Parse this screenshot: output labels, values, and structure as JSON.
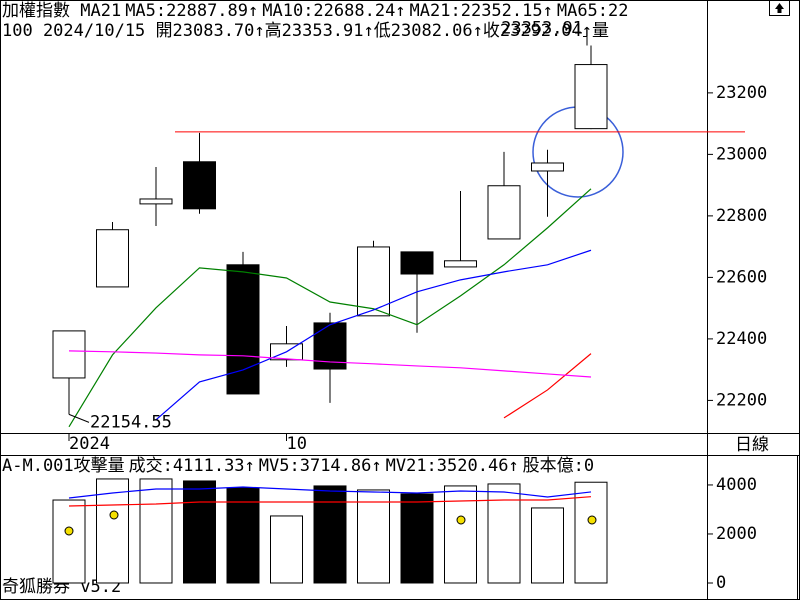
{
  "period": "日線",
  "footer": "奇狐勝券 v5.2",
  "chart_data": [
    {
      "type": "candlestick",
      "title": "加權指數 MA21",
      "info": "100 2024/10/15 開23083.70↑高23353.91↑低23082.06↑收23292.04↑量",
      "categories": [
        "2024",
        null,
        null,
        null,
        null,
        "10",
        null,
        null,
        null,
        null,
        null,
        null,
        null
      ],
      "open": [
        22273,
        22569,
        22839,
        22976,
        22641,
        22332,
        22452,
        22475,
        22683,
        22634,
        22725,
        22946,
        23083.7
      ],
      "high": [
        22426,
        22780,
        22959,
        23070,
        22683,
        22442,
        22485,
        22719,
        22683,
        22881,
        23008,
        23015,
        23353.91
      ],
      "low": [
        22154.55,
        22569,
        22767,
        22807,
        22221,
        22309,
        22192,
        22475,
        22420,
        22634,
        22725,
        22797,
        23082.06
      ],
      "close": [
        22426,
        22755,
        22855,
        22823,
        22221,
        22384,
        22302,
        22699,
        22611,
        22654,
        22898,
        22972,
        23292.04
      ],
      "up_color": "#ffffff",
      "down_color": "#000000",
      "lines": [
        {
          "name": "MA5:22887.89↑",
          "color": "#008000",
          "values": [
            22114,
            22348,
            22501,
            22631,
            22618,
            22598,
            22520,
            22498,
            22446,
            22540,
            22641,
            22761,
            22887.89
          ]
        },
        {
          "name": "MA10:22688.24↑",
          "color": "#0000ff",
          "values": [
            null,
            null,
            22137,
            22260,
            22299,
            22358,
            22446,
            22494,
            22553,
            22592,
            22618,
            22641,
            22688.24
          ]
        },
        {
          "name": "MA21:22352.15↑",
          "color": "#ff0000",
          "values": [
            null,
            null,
            null,
            null,
            null,
            null,
            null,
            null,
            null,
            null,
            22143,
            22234,
            22352.15
          ]
        },
        {
          "name": "MA65:22",
          "color": "#ff00ff",
          "values": [
            22361,
            22358,
            22354,
            22348,
            22345,
            22335,
            22325,
            22319,
            22312,
            22306,
            22296,
            22286,
            22276
          ]
        }
      ],
      "hline": 23073,
      "hline_color": "#ff0000",
      "ylim": [
        22094,
        23502
      ],
      "yticks": [
        22200,
        22400,
        22600,
        22800,
        23000,
        23200
      ]
    },
    {
      "type": "bar",
      "title": "A-M.001攻擊量",
      "series": [
        {
          "name": "成交:4111.33↑",
          "color": "#008000",
          "values": [
            3385,
            4245,
            4245,
            4163,
            3878,
            2735,
            3960,
            3796,
            3633,
            3960,
            4041,
            3062,
            4111.33
          ]
        }
      ],
      "lines": [
        {
          "name": "MV5:3714.86↑",
          "color": "#0000ff",
          "values": [
            3468,
            3672,
            3835,
            3835,
            3917,
            3835,
            3754,
            3713,
            3672,
            3754,
            3713,
            3509,
            3714.86
          ]
        },
        {
          "name": "MV21:3520.46↑",
          "color": "#ff0000",
          "values": [
            3142,
            3182,
            3223,
            3305,
            3305,
            3305,
            3305,
            3305,
            3305,
            3346,
            3386,
            3386,
            3520.46
          ]
        }
      ],
      "extra_label": {
        "text": "股本億:0",
        "color": "#ff00ff"
      },
      "ylim": [
        -694,
        5222
      ],
      "yticks": [
        0,
        2000,
        4000
      ]
    }
  ]
}
